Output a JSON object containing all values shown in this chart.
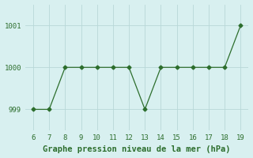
{
  "x": [
    6,
    7,
    8,
    9,
    10,
    11,
    12,
    13,
    14,
    15,
    16,
    17,
    18,
    19
  ],
  "y": [
    999,
    999,
    1000,
    1000,
    1000,
    1000,
    1000,
    999,
    1000,
    1000,
    1000,
    1000,
    1000,
    1001
  ],
  "line_color": "#2d6e2d",
  "marker": "D",
  "background_color": "#d8f0f0",
  "grid_color": "#b8d8d8",
  "xlabel": "Graphe pression niveau de la mer (hPa)",
  "xlabel_color": "#2d6e2d",
  "ylabel_ticks": [
    999,
    1000,
    1001
  ],
  "xlim": [
    5.5,
    19.5
  ],
  "ylim": [
    998.5,
    1001.5
  ],
  "xticks": [
    6,
    7,
    8,
    9,
    10,
    11,
    12,
    13,
    14,
    15,
    16,
    17,
    18,
    19
  ],
  "tick_color": "#2d6e2d",
  "tick_fontsize": 6.5,
  "xlabel_fontsize": 7.5
}
